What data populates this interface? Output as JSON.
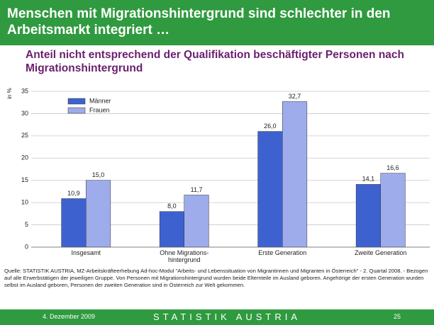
{
  "header": {
    "title": "Menschen mit Migrationshintergrund sind schlechter in den Arbeitsmarkt integriert …"
  },
  "chart_data": {
    "type": "bar",
    "title": "Anteil nicht entsprechend der Qualifikation beschäftigter Personen nach Migrationshintergrund",
    "y_label": "in %",
    "categories": [
      "Insgesamt",
      "Ohne Migrations-\nhintergrund",
      "Erste Generation",
      "Zweite Generation"
    ],
    "series": [
      {
        "name": "Männer",
        "color": "#3d62d0",
        "values": [
          10.9,
          8.0,
          26.0,
          14.1
        ],
        "value_labels": [
          "10,9",
          "8,0",
          "26,0",
          "14,1"
        ]
      },
      {
        "name": "Frauen",
        "color": "#9eaceb",
        "values": [
          15.0,
          11.7,
          32.7,
          16.6
        ],
        "value_labels": [
          "15,0",
          "11,7",
          "32,7",
          "16,6"
        ]
      }
    ],
    "ylim": [
      0,
      35
    ],
    "yticks": [
      0,
      5,
      10,
      15,
      20,
      25,
      30,
      35
    ],
    "grid": true,
    "legend": "upper left"
  },
  "source": "Quelle: STATISTIK AUSTRIA, MZ-Arbeitskräfteerhebung Ad-hoc-Modul \"Arbeits- und Lebenssituation von Migrantinnen und Migranten in Österreich\" - 2. Quartal 2008. - Bezogen auf alle Erwerbstätigen der jeweiligen Gruppe. Von Personen mit Migrationshintergrund wurden beide Elternteile im Ausland geboren. Angehörige der ersten Generation wurden selbst im Ausland geboren, Personen der zweiten Generation sind in Österreich zur Welt gekommen.",
  "footer": {
    "date": "4. Dezember 2009",
    "brand": "STATISTIK AUSTRIA",
    "page": "25"
  }
}
